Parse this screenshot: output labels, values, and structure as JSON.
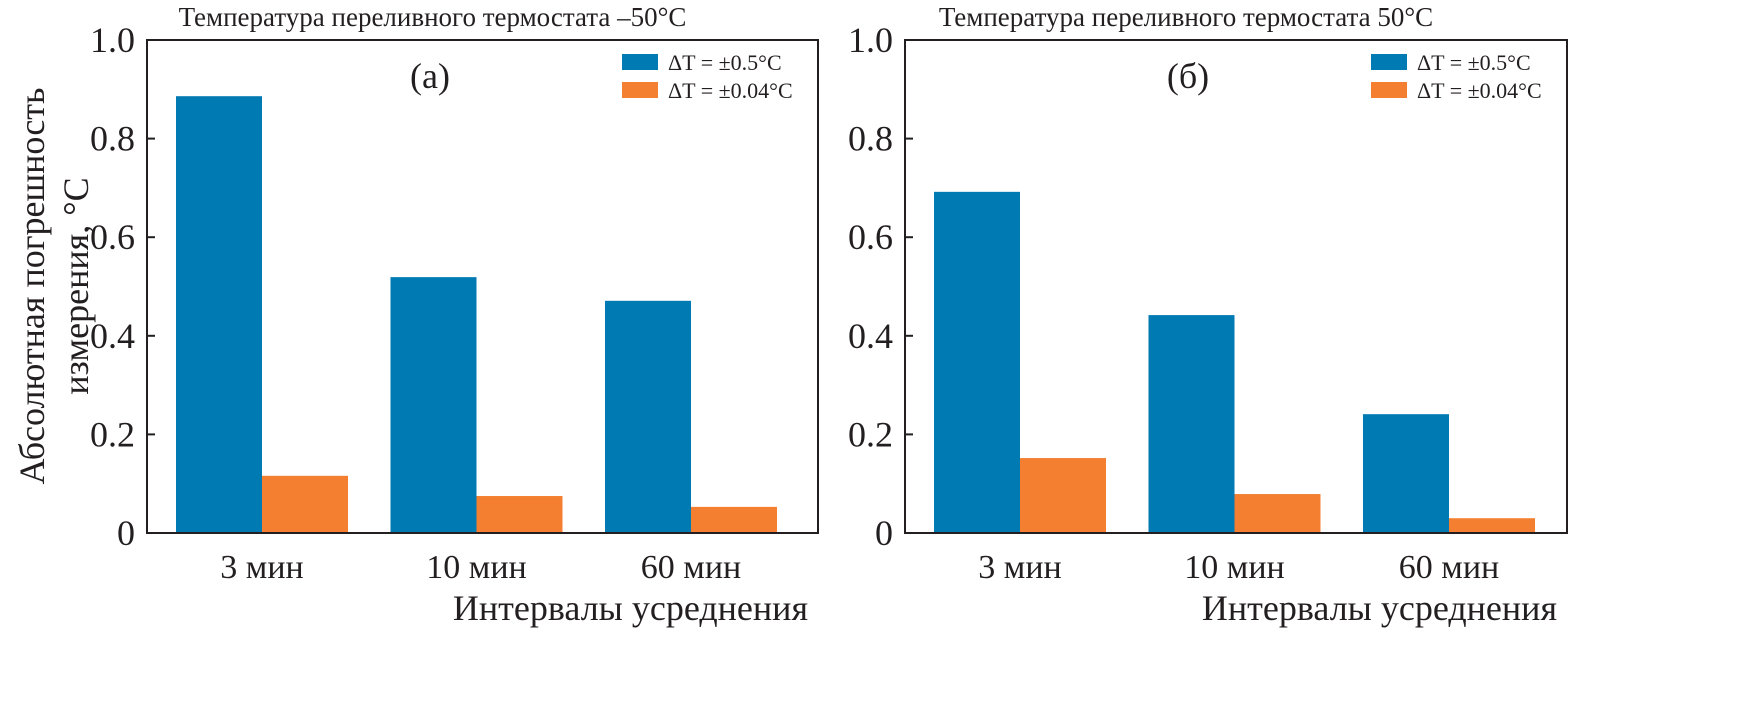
{
  "colors": {
    "series1": "#007ab3",
    "series2": "#f47f30",
    "axis": "#231f20"
  },
  "ylabel_lines": [
    "Абсолютная погрешность",
    "измерения, °C"
  ],
  "chart_data": [
    {
      "type": "bar",
      "title": "Температура переливного термостата –50°C",
      "panel_label": "(а)",
      "xlabel": "Интервалы усреднения",
      "ylabel": "Абсолютная погрешность измерения, °C",
      "categories": [
        "3 мин",
        "10 мин",
        "60 мин"
      ],
      "series": [
        {
          "name": "ΔT = ±0.5°C",
          "values": [
            0.886,
            0.519,
            0.471
          ]
        },
        {
          "name": "ΔT = ±0.04°C",
          "values": [
            0.116,
            0.075,
            0.053
          ]
        }
      ],
      "ylim": [
        0,
        1.0
      ],
      "yticks": [
        "0",
        "0.2",
        "0.4",
        "0.6",
        "0.8",
        "1.0"
      ],
      "legend": "top-right",
      "grid": false
    },
    {
      "type": "bar",
      "title": "Температура переливного термостата 50°C",
      "panel_label": "(б)",
      "xlabel": "Интервалы усреднения",
      "categories": [
        "3 мин",
        "10 мин",
        "60 мин"
      ],
      "series": [
        {
          "name": "ΔT = ±0.5°C",
          "values": [
            0.692,
            0.442,
            0.241
          ]
        },
        {
          "name": "ΔT = ±0.04°C",
          "values": [
            0.152,
            0.079,
            0.03
          ]
        }
      ],
      "ylim": [
        0,
        1.0
      ],
      "yticks": [
        "0",
        "0.2",
        "0.4",
        "0.6",
        "0.8",
        "1.0"
      ],
      "legend": "top-right",
      "grid": false
    }
  ]
}
